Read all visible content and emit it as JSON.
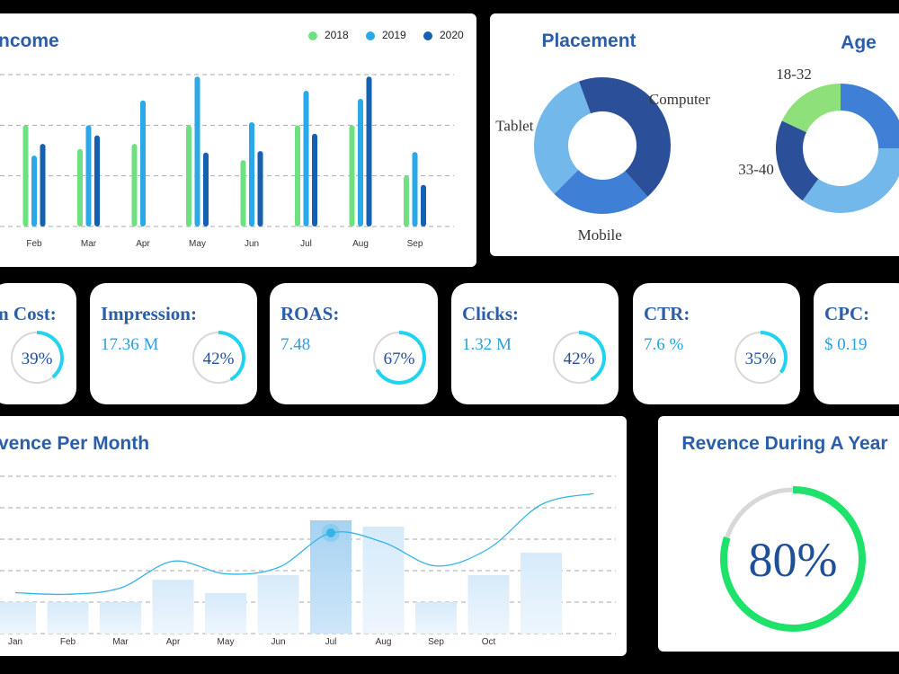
{
  "chart_data": [
    {
      "type": "bar",
      "title": "ncome",
      "categories": [
        "Feb",
        "Mar",
        "Apr",
        "May",
        "Jun",
        "Jul",
        "Aug",
        "Sep"
      ],
      "series": [
        {
          "name": "2018",
          "color": "#6fe07f",
          "values": [
            2.0,
            1.53,
            1.63,
            2.0,
            1.31,
            2.0,
            2.0,
            1.0
          ]
        },
        {
          "name": "2019",
          "color": "#2aa8e8",
          "values": [
            1.4,
            2.0,
            2.49,
            2.96,
            2.06,
            2.68,
            2.52,
            1.47
          ]
        },
        {
          "name": "2020",
          "color": "#1560b0",
          "values": [
            1.63,
            1.8,
            null,
            1.46,
            1.49,
            1.83,
            2.96,
            0.82
          ]
        }
      ],
      "ylim": [
        0,
        3
      ],
      "grid": true,
      "legend": "top-right"
    },
    {
      "type": "donut",
      "title": "Placement",
      "categories": [
        "Computer",
        "Mobile",
        "Tablet"
      ],
      "values": [
        44,
        24,
        32
      ],
      "colors": [
        "#2b4f98",
        "#3f7fd6",
        "#72b8ea"
      ]
    },
    {
      "type": "donut",
      "title": "Age",
      "categories": [
        null,
        null,
        "33-40",
        "18-32"
      ],
      "values": [
        25,
        35,
        22,
        18
      ],
      "colors": [
        "#3f7fd6",
        "#72b8ea",
        "#2b4f98",
        "#8ee07a"
      ]
    },
    {
      "type": "combo",
      "title": "vence Per Month",
      "categories": [
        "Jan",
        "Feb",
        "Mar",
        "Apr",
        "May",
        "Jun",
        "Jul",
        "Aug",
        "Sep",
        "Oct",
        null,
        null
      ],
      "series": [
        {
          "type": "bar",
          "color": "#cfe6f7",
          "values": [
            1.0,
            1.0,
            1.0,
            1.71,
            1.29,
            1.86,
            3.6,
            3.4,
            1.0,
            1.86,
            2.57,
            null
          ]
        },
        {
          "type": "line",
          "color": "#35b4e6",
          "values": [
            1.3,
            1.25,
            1.45,
            2.3,
            1.9,
            2.1,
            3.2,
            2.9,
            2.15,
            2.7,
            4.1,
            4.45
          ]
        }
      ],
      "ylim": [
        0,
        5
      ],
      "grid": true,
      "marker_index": 6
    },
    {
      "type": "gauge",
      "title": "Revence During A Year",
      "value": 80,
      "value_label": "80%",
      "color": "#1ee26a"
    }
  ],
  "kpis": [
    {
      "title": "n Cost:",
      "progress": 39,
      "progress_label": "39%"
    },
    {
      "title": "Impression:",
      "value": "17.36 M",
      "progress": 42,
      "progress_label": "42%"
    },
    {
      "title": "ROAS:",
      "value": "7.48",
      "progress": 67,
      "progress_label": "67%"
    },
    {
      "title": "Clicks:",
      "value": "1.32 M",
      "progress": 42,
      "progress_label": "42%"
    },
    {
      "title": "CTR:",
      "value": "7.6 %",
      "progress": 35,
      "progress_label": "35%"
    },
    {
      "title": "CPC:",
      "value": "$ 0.19"
    }
  ]
}
